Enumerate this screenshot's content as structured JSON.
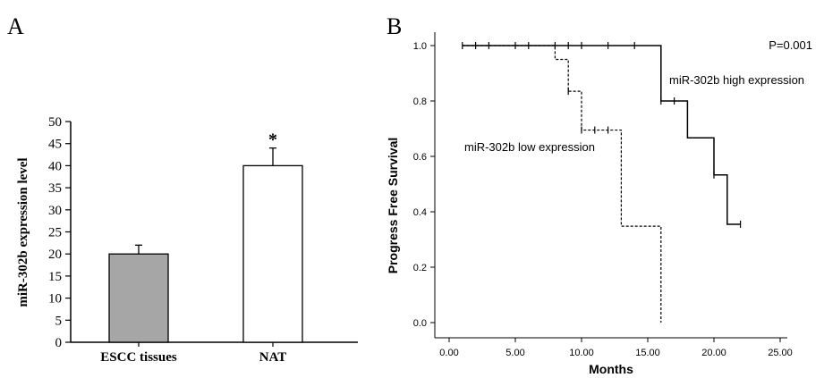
{
  "chart_data": [
    {
      "type": "bar",
      "panel_label": "A",
      "title": "",
      "xlabel": "",
      "ylabel": "miR-302b expression level",
      "ylim": [
        0,
        50
      ],
      "yticks": [
        0,
        5,
        10,
        15,
        20,
        25,
        30,
        35,
        40,
        45,
        50
      ],
      "categories": [
        "ESCC tissues",
        "NAT"
      ],
      "values": [
        20,
        40
      ],
      "error_upper": [
        2,
        4
      ],
      "bar_colors": [
        "#a6a6a6",
        "#ffffff"
      ],
      "annotations": [
        {
          "category": "NAT",
          "text": "*"
        }
      ],
      "grid": false,
      "legend": "none"
    },
    {
      "type": "line",
      "subtype": "kaplan-meier step",
      "panel_label": "B",
      "title": "",
      "xlabel": "Months",
      "ylabel": "Progress Free Survival",
      "xlim": [
        0,
        25
      ],
      "ylim": [
        0,
        1
      ],
      "xticks": [
        "0.00",
        "5.00",
        "10.00",
        "15.00",
        "20.00",
        "25.00"
      ],
      "yticks": [
        "0.0",
        "0.2",
        "0.4",
        "0.6",
        "0.8",
        "1.0"
      ],
      "pvalue_text": "P=0.001",
      "grid": false,
      "series": [
        {
          "name": "miR-302b high expression",
          "style": "solid",
          "steps": [
            [
              1,
              1.0
            ],
            [
              16,
              0.8
            ],
            [
              18,
              0.667
            ],
            [
              20,
              0.533
            ],
            [
              21,
              0.355
            ],
            [
              22,
              0.355
            ]
          ],
          "censored": [
            [
              1,
              1.0
            ],
            [
              2,
              1.0
            ],
            [
              3,
              1.0
            ],
            [
              5,
              1.0
            ],
            [
              6,
              1.0
            ],
            [
              8,
              1.0
            ],
            [
              9,
              1.0
            ],
            [
              10,
              1.0
            ],
            [
              12,
              1.0
            ],
            [
              14,
              1.0
            ],
            [
              16,
              0.8
            ],
            [
              17,
              0.8
            ],
            [
              20,
              0.533
            ],
            [
              22,
              0.355
            ]
          ]
        },
        {
          "name": "miR-302b low expression",
          "style": "dashed",
          "steps": [
            [
              1,
              1.0
            ],
            [
              8,
              0.95
            ],
            [
              9,
              0.835
            ],
            [
              10,
              0.695
            ],
            [
              13,
              0.348
            ],
            [
              16,
              0.0
            ]
          ],
          "censored": [
            [
              9,
              0.835
            ],
            [
              10,
              0.695
            ],
            [
              11,
              0.695
            ],
            [
              12,
              0.695
            ]
          ]
        }
      ]
    }
  ]
}
